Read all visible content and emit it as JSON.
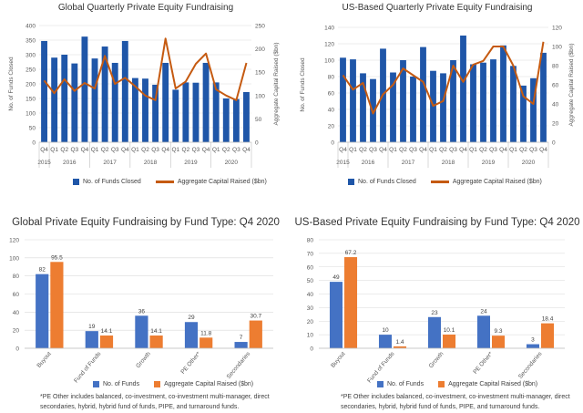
{
  "colors": {
    "navy": "#1f56a8",
    "burnt": "#c55a11",
    "blue": "#4472c4",
    "orange": "#ed7d31",
    "grid": "#d9d9d9",
    "axis_text": "#595959"
  },
  "footnotes": {
    "left": "*PE Other includes balanced, co-investment, co-investment multi-manager, direct secondaries, hybrid, hybrid fund of funds, PIPE, and turnaround funds.",
    "right": "*PE Other includes balanced, co-investment, co-investment multi-manager, direct secondaries, hybrid, hybrid fund of funds, PIPE, and turnaround funds."
  },
  "chart_data": [
    {
      "type": "bar",
      "title": "Global Quarterly Private Equity Fundraising",
      "quarters": [
        "Q4",
        "Q1",
        "Q2",
        "Q3",
        "Q4",
        "Q1",
        "Q2",
        "Q3",
        "Q4",
        "Q1",
        "Q2",
        "Q3",
        "Q4",
        "Q1",
        "Q2",
        "Q3",
        "Q4",
        "Q1",
        "Q2",
        "Q3",
        "Q4"
      ],
      "years": [
        "2015",
        "2016",
        "2017",
        "2018",
        "2019",
        "2020"
      ],
      "ylabel": "No. of Funds Closed",
      "y2label": "Aggregate Capital Raised ($bn)",
      "ylim": [
        0,
        400
      ],
      "yticks": [
        0,
        50,
        100,
        150,
        200,
        250,
        300,
        350,
        400
      ],
      "y2lim": [
        0,
        250
      ],
      "y2ticks": [
        0,
        50,
        100,
        150,
        200,
        250
      ],
      "series": [
        {
          "name": "No. of Funds Closed",
          "kind": "bar",
          "axis": "left",
          "values": [
            347,
            290,
            300,
            270,
            362,
            287,
            328,
            272,
            347,
            220,
            218,
            197,
            272,
            180,
            205,
            204,
            272,
            205,
            150,
            148,
            172
          ]
        },
        {
          "name": "Aggregate Capital Raised ($bn)",
          "kind": "line",
          "axis": "right",
          "values": [
            132,
            105,
            135,
            110,
            127,
            115,
            185,
            125,
            138,
            120,
            100,
            90,
            222,
            115,
            130,
            168,
            190,
            113,
            100,
            90,
            170
          ]
        }
      ]
    },
    {
      "type": "bar",
      "title": "US-Based Quarterly Private Equity Fundraising",
      "quarters": [
        "Q4",
        "Q1",
        "Q2",
        "Q3",
        "Q4",
        "Q1",
        "Q2",
        "Q3",
        "Q4",
        "Q1",
        "Q2",
        "Q3",
        "Q4",
        "Q1",
        "Q2",
        "Q3",
        "Q4",
        "Q1",
        "Q2",
        "Q3",
        "Q4"
      ],
      "years": [
        "2015",
        "2016",
        "2017",
        "2018",
        "2019",
        "2020"
      ],
      "ylabel": "No. of Funds Closed",
      "y2label": "Aggregate Capital Raised ($bn)",
      "ylim": [
        0,
        140
      ],
      "yticks": [
        0,
        20,
        40,
        60,
        80,
        100,
        120,
        140
      ],
      "y2lim": [
        0,
        120
      ],
      "y2ticks": [
        0,
        20,
        40,
        60,
        80,
        100,
        120
      ],
      "series": [
        {
          "name": "No. of Funds Closed",
          "kind": "bar",
          "axis": "left",
          "values": [
            103,
            101,
            84,
            77,
            114,
            85,
            100,
            80,
            116,
            87,
            84,
            100,
            130,
            95,
            97,
            101,
            118,
            93,
            69,
            78,
            109
          ]
        },
        {
          "name": "Aggregate Capital Raised ($bn)",
          "kind": "line",
          "axis": "right",
          "values": [
            70,
            55,
            62,
            30,
            50,
            60,
            77,
            70,
            63,
            38,
            43,
            80,
            63,
            81,
            85,
            100,
            100,
            80,
            48,
            40,
            105
          ]
        }
      ]
    },
    {
      "type": "bar",
      "title": "Global Private Equity Fundraising by Fund Type: Q4 2020",
      "categories": [
        "Buyout",
        "Fund of Funds",
        "Growth",
        "PE Other*",
        "Secondaries"
      ],
      "ylim": [
        0,
        120
      ],
      "yticks": [
        0,
        20,
        40,
        60,
        80,
        100,
        120
      ],
      "series": [
        {
          "name": "No. of Funds",
          "values": [
            82,
            19,
            36,
            29,
            7
          ],
          "labels": [
            "82",
            "19",
            "36",
            "29",
            "7"
          ]
        },
        {
          "name": "Aggregate Capital Raised ($bn)",
          "values": [
            95.5,
            14.1,
            14.1,
            11.8,
            30.7
          ],
          "labels": [
            "95.5",
            "14.1",
            "14.1",
            "11.8",
            "30.7"
          ]
        }
      ]
    },
    {
      "type": "bar",
      "title": "US-Based Private Equity Fundraising by Fund Type: Q4 2020",
      "categories": [
        "Buyout",
        "Fund of Funds",
        "Growth",
        "PE Other*",
        "Secondaries"
      ],
      "ylim": [
        0,
        80
      ],
      "yticks": [
        0,
        10,
        20,
        30,
        40,
        50,
        60,
        70,
        80
      ],
      "series": [
        {
          "name": "No. of Funds",
          "values": [
            49,
            10,
            23,
            24,
            3
          ],
          "labels": [
            "49",
            "10",
            "23",
            "24",
            "3"
          ]
        },
        {
          "name": "Aggregate Capital Raised ($bn)",
          "values": [
            67.2,
            1.4,
            10.1,
            9.3,
            18.4
          ],
          "labels": [
            "67.2",
            "1.4",
            "10.1",
            "9.3",
            "18.4"
          ]
        }
      ]
    }
  ]
}
